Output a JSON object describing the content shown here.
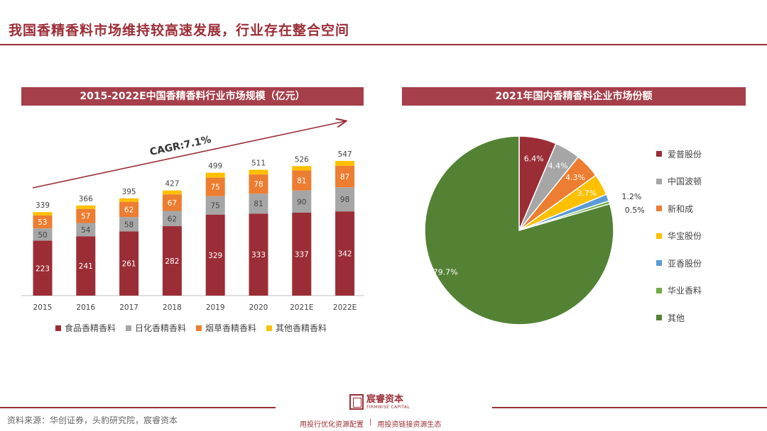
{
  "page": {
    "title": "我国香精香料市场维持较高速发展，行业存在整合空间",
    "source": "资料来源：华创证券，头豹研究院，宸睿资本",
    "logo_cn": "宸睿资本",
    "logo_en": "FIRMWISE CAPITAL",
    "slogan_left": "用投行优化资源配置",
    "slogan_sep": "|",
    "slogan_right": "用投资链接资源生态"
  },
  "colors": {
    "brand": "#9b2d36",
    "header_bg": "#a53f4a",
    "food": "#9b2d36",
    "daily": "#a6a6a6",
    "tobacco": "#ed7d31",
    "other": "#ffc000",
    "pie_blue": "#5b9bd5",
    "pie_green": "#70ad47",
    "pie_others": "#548235"
  },
  "chart_data": [
    {
      "type": "bar",
      "title": "2015-2022E中国香精香料行业市场规模（亿元）",
      "categories": [
        "2015",
        "2016",
        "2017",
        "2018",
        "2019",
        "2020",
        "2021E",
        "2022E"
      ],
      "series": [
        {
          "name": "食品香精香料",
          "values": [
            223,
            241,
            261,
            282,
            329,
            333,
            337,
            342
          ]
        },
        {
          "name": "日化香精香料",
          "values": [
            50,
            54,
            58,
            62,
            75,
            81,
            90,
            98
          ]
        },
        {
          "name": "烟草香精香料",
          "values": [
            53,
            57,
            62,
            67,
            75,
            78,
            81,
            87
          ]
        },
        {
          "name": "其他香精香料",
          "values": [
            13,
            14,
            14,
            16,
            20,
            19,
            18,
            20
          ]
        }
      ],
      "totals": [
        339,
        366,
        395,
        427,
        499,
        511,
        526,
        547
      ],
      "annotation": "CAGR:7.1%",
      "ylim": [
        0,
        560
      ],
      "legend": "bottom"
    },
    {
      "type": "pie",
      "title": "2021年国内香精香料企业市场份额",
      "labels": [
        "爱普股份",
        "中国波顿",
        "新和成",
        "华宝股份",
        "亚香股份",
        "华业香料",
        "其他"
      ],
      "values": [
        6.4,
        4.4,
        4.3,
        3.7,
        1.2,
        0.5,
        79.7
      ],
      "value_labels": [
        "6.4%",
        "4.4%",
        "4.3%",
        "3.7%",
        "1.2%",
        "0.5%",
        "79.7%"
      ],
      "legend": "right"
    }
  ]
}
